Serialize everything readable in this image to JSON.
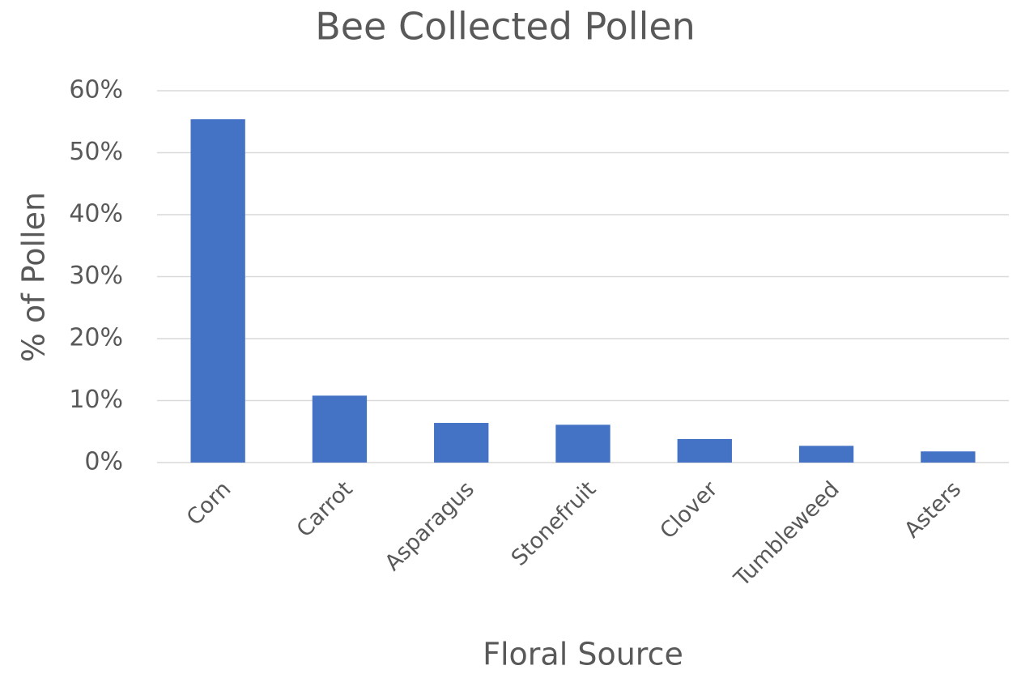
{
  "chart_data": {
    "type": "bar",
    "title": "Bee Collected Pollen",
    "x_label": "Floral Source",
    "y_label": "% of Pollen",
    "categories": [
      "Corn",
      "Carrot",
      "Asparagus",
      "Stonefruit",
      "Clover",
      "Tumbleweed",
      "Asters"
    ],
    "values": [
      55.4,
      10.8,
      6.4,
      6.1,
      3.8,
      2.7,
      1.8
    ],
    "color": "#4472c4",
    "ylim": [
      0,
      60
    ],
    "yticks": [
      {
        "value": 0,
        "label": "0%"
      },
      {
        "value": 10,
        "label": "10%"
      },
      {
        "value": 20,
        "label": "20%"
      },
      {
        "value": 30,
        "label": "30%"
      },
      {
        "value": 40,
        "label": "40%"
      },
      {
        "value": 50,
        "label": "50%"
      },
      {
        "value": 60,
        "label": "60%"
      }
    ],
    "grid": true
  }
}
